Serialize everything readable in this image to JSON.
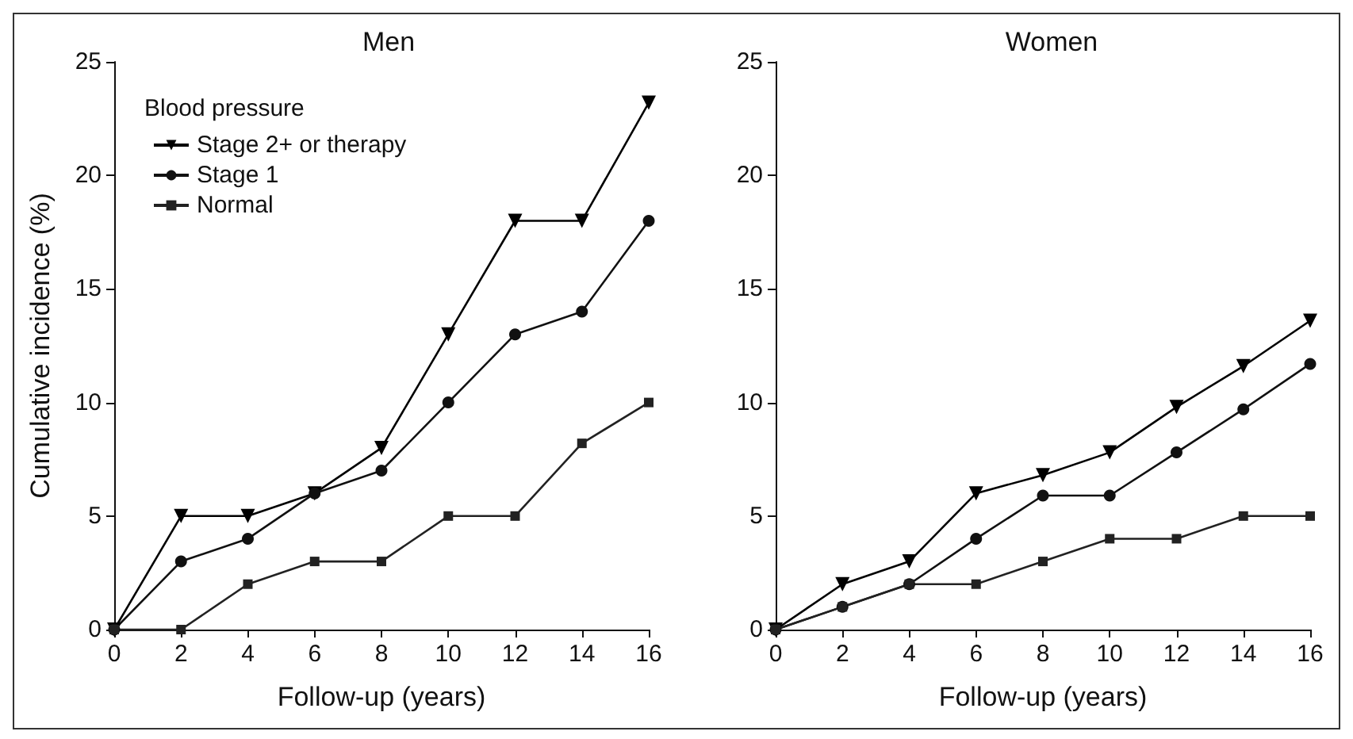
{
  "chart_data": [
    {
      "type": "line",
      "title": "Men",
      "xlabel": "Follow-up (years)",
      "ylabel": "Cumulative incidence (%)",
      "legend_title": "Blood pressure",
      "legend": "top left",
      "x": [
        0,
        2,
        4,
        6,
        8,
        10,
        12,
        14,
        16
      ],
      "xlim": [
        0,
        16
      ],
      "xticks": [
        0,
        2,
        4,
        6,
        8,
        10,
        12,
        14,
        16
      ],
      "ylim": [
        0,
        25
      ],
      "yticks": [
        0,
        5,
        10,
        15,
        20,
        25
      ],
      "grid": false,
      "line_style": "solid",
      "series": [
        {
          "name": "Stage 2+ or therapy",
          "color": "#000000",
          "marker": "triangle",
          "values": [
            0,
            5,
            5,
            6,
            8,
            13,
            18,
            18,
            23.2
          ]
        },
        {
          "name": "Stage 1",
          "color": "#111111",
          "marker": "circle",
          "values": [
            0,
            3,
            4,
            6,
            7,
            10,
            13,
            14,
            18
          ]
        },
        {
          "name": "Normal",
          "color": "#222222",
          "marker": "square",
          "values": [
            0,
            0,
            2,
            3,
            3,
            5,
            5,
            8.2,
            10
          ]
        }
      ]
    },
    {
      "type": "line",
      "title": "Women",
      "xlabel": "Follow-up (years)",
      "legend": false,
      "x": [
        0,
        2,
        4,
        6,
        8,
        10,
        12,
        14,
        16
      ],
      "xlim": [
        0,
        16
      ],
      "xticks": [
        0,
        2,
        4,
        6,
        8,
        10,
        12,
        14,
        16
      ],
      "ylim": [
        0,
        25
      ],
      "yticks": [
        0,
        5,
        10,
        15,
        20,
        25
      ],
      "grid": false,
      "line_style": "solid",
      "series": [
        {
          "color": "#000000",
          "marker": "triangle",
          "values": [
            0,
            2,
            3,
            6,
            6.8,
            7.8,
            9.8,
            11.6,
            13.6
          ]
        },
        {
          "color": "#111111",
          "marker": "circle",
          "values": [
            0,
            1,
            2,
            4,
            5.9,
            5.9,
            7.8,
            9.7,
            11.7
          ]
        },
        {
          "color": "#222222",
          "marker": "square",
          "values": [
            0,
            1,
            2,
            2,
            3,
            4,
            4,
            5,
            5
          ]
        }
      ]
    }
  ]
}
